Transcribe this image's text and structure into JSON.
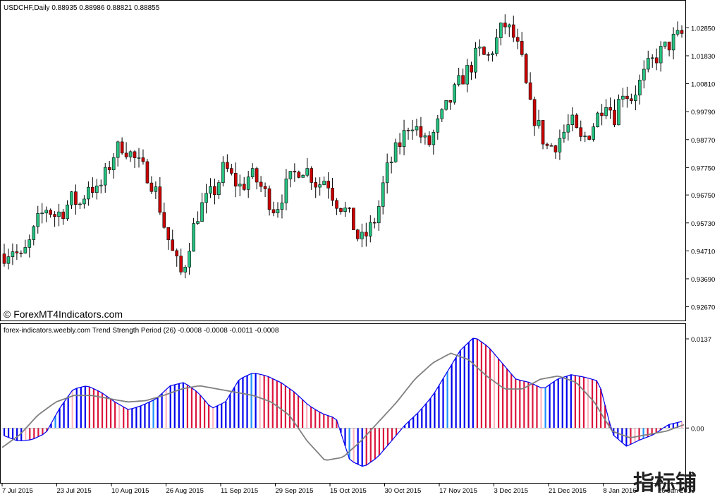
{
  "header": {
    "symbol_line": "USDCHF,Daily  0.88935 0.88986 0.88821 0.88855"
  },
  "copyright": "© ForexMT4Indicators.com",
  "indicator": {
    "title": "forex-indicators.weebly.com Trend Strength Period (26) -0.0008 -0.0008 -0.0011 -0.0008"
  },
  "watermark": "指标铺",
  "colors": {
    "bull": "#26c281",
    "bear": "#cc0000",
    "wick": "#000000",
    "hist_blue": "#0000ee",
    "hist_red": "#dc143c",
    "hist_pink": "#ffb6c1",
    "hist_light_blue": "#1e90ff",
    "signal_line": "#808080",
    "outline": "#0000ee"
  },
  "chart_data": [
    {
      "type": "candlestick",
      "title": "USDCHF,Daily",
      "ylim": [
        0.9222,
        1.0335
      ],
      "y_ticks": [
        "1.02850",
        "1.01830",
        "1.00810",
        "0.99790",
        "0.98770",
        "0.97750",
        "0.96750",
        "0.95730",
        "0.94710",
        "0.93690",
        "0.92670"
      ],
      "x_ticks": [
        "7 Jul 2015",
        "23 Jul 2015",
        "10 Aug 2015",
        "26 Aug 2015",
        "11 Sep 2015",
        "29 Sep 2015",
        "15 Oct 2015",
        "30 Oct 2015",
        "17 Nov 2015",
        "3 Dec 2015",
        "21 Dec 2015",
        "8 Jan 2016",
        "26 Jan 2016"
      ],
      "close_path": [
        0.946,
        0.948,
        0.944,
        0.95,
        0.958,
        0.963,
        0.96,
        0.962,
        0.966,
        0.964,
        0.972,
        0.968,
        0.975,
        0.983,
        0.986,
        0.982,
        0.978,
        0.975,
        0.968,
        0.955,
        0.945,
        0.938,
        0.952,
        0.962,
        0.966,
        0.97,
        0.978,
        0.973,
        0.97,
        0.975,
        0.972,
        0.967,
        0.962,
        0.969,
        0.974,
        0.978,
        0.976,
        0.971,
        0.974,
        0.966,
        0.963,
        0.958,
        0.95,
        0.954,
        0.96,
        0.975,
        0.982,
        0.988,
        0.995,
        0.99,
        0.985,
        0.992,
        0.998,
        1.004,
        1.01,
        1.014,
        1.02,
        1.017,
        1.023,
        1.03,
        1.026,
        1.018,
        1.0,
        0.993,
        0.985,
        0.986,
        0.99,
        0.994,
        0.987,
        0.99,
        0.996,
        1.003,
        0.996,
        1.006,
        1.003,
        1.008,
        1.014,
        1.018,
        1.021,
        1.024,
        1.026
      ]
    },
    {
      "type": "bar",
      "title": "Trend Strength Period (26)",
      "ylim": [
        -0.008,
        0.0137
      ],
      "y_ticks": [
        "0.0137",
        "0.00"
      ],
      "histogram_path": [
        -0.0012,
        -0.002,
        -0.0018,
        -0.0008,
        0.003,
        0.006,
        0.0065,
        0.0055,
        0.004,
        0.0028,
        0.0035,
        0.0045,
        0.0065,
        0.007,
        0.0055,
        0.003,
        0.004,
        0.0075,
        0.0085,
        0.008,
        0.007,
        0.0055,
        0.0035,
        0.0022,
        0.0015,
        -0.005,
        -0.006,
        -0.0045,
        -0.002,
        0.0005,
        0.0025,
        0.005,
        0.0085,
        0.012,
        0.014,
        0.0125,
        0.01,
        0.0075,
        0.007,
        0.006,
        0.0075,
        0.0082,
        0.0078,
        0.0072,
        -0.001,
        -0.0028,
        -0.0018,
        -0.001,
        0.0005,
        0.001
      ],
      "signal_path": [
        -0.003,
        -0.001,
        0.002,
        0.004,
        0.005,
        0.005,
        0.0045,
        0.004,
        0.0042,
        0.005,
        0.006,
        0.0065,
        0.006,
        0.0055,
        0.005,
        0.004,
        0.002,
        -0.002,
        -0.005,
        -0.0045,
        -0.002,
        0.001,
        0.004,
        0.0075,
        0.01,
        0.0115,
        0.0105,
        0.008,
        0.006,
        0.006,
        0.0075,
        0.008,
        0.007,
        0.004,
        -0.0005,
        -0.0015,
        -0.001,
        -0.0005,
        0.0005
      ]
    }
  ]
}
